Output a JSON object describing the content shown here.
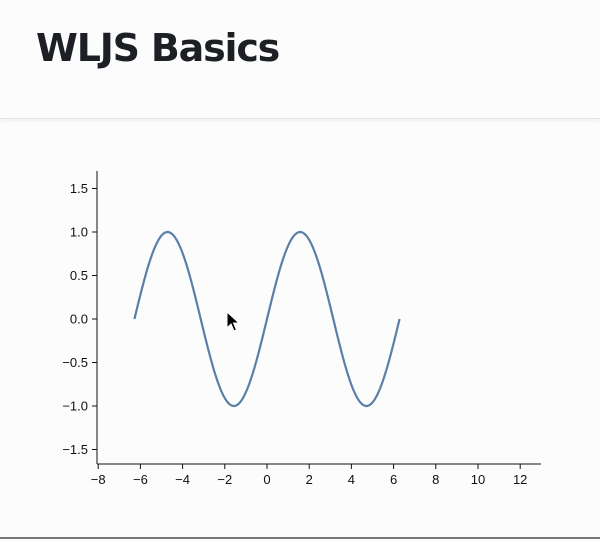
{
  "page": {
    "title": "WLJS Basics"
  },
  "colors": {
    "curve": "#5b7fa6",
    "axis": "#111111",
    "title": "#1c1f24"
  },
  "chart_data": {
    "type": "line",
    "title": "",
    "xlabel": "",
    "ylabel": "",
    "function": "sin(x)",
    "xlim": [
      -8,
      13
    ],
    "ylim": [
      -1.7,
      1.7
    ],
    "x_range": [
      -6.283,
      6.283
    ],
    "x_ticks": [
      -8,
      -6,
      -4,
      -2,
      0,
      2,
      4,
      6,
      8,
      10,
      12
    ],
    "y_ticks": [
      -1.5,
      -1.0,
      -0.5,
      0.0,
      0.5,
      1.0,
      1.5
    ],
    "x_tick_labels": [
      "−8",
      "−6",
      "−4",
      "−2",
      "0",
      "2",
      "4",
      "6",
      "8",
      "10",
      "12"
    ],
    "y_tick_labels": [
      "−1.5",
      "−1.0",
      "−0.5",
      "0.0",
      "0.5",
      "1.0",
      "1.5"
    ],
    "grid": false,
    "series": [
      {
        "x": [
          -6.283,
          -5.498,
          -4.712,
          -3.927,
          -3.142,
          -2.356,
          -1.571,
          -0.785,
          0.0,
          0.785,
          1.571,
          2.356,
          3.142,
          3.927,
          4.712,
          5.498,
          6.283
        ],
        "y": [
          0.0,
          0.707,
          1.0,
          0.707,
          0.0,
          -0.707,
          -1.0,
          -0.707,
          0.0,
          0.707,
          1.0,
          0.707,
          0.0,
          -0.707,
          -1.0,
          -0.707,
          0.0
        ]
      }
    ]
  }
}
